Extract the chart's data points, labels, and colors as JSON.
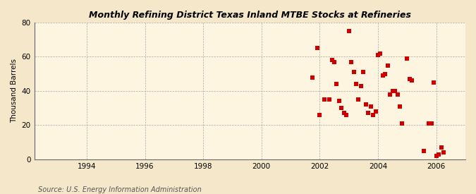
{
  "title": "Monthly Refining District Texas Inland MTBE Stocks at Refineries",
  "ylabel": "Thousand Barrels",
  "source": "Source: U.S. Energy Information Administration",
  "background_color": "#f5e8ca",
  "plot_background_color": "#fdf5e0",
  "marker_color": "#cc0000",
  "marker_size": 16,
  "xlim": [
    1992.2,
    2007.0
  ],
  "ylim": [
    0,
    80
  ],
  "xticks": [
    1994,
    1996,
    1998,
    2000,
    2002,
    2004,
    2006
  ],
  "yticks": [
    0,
    20,
    40,
    60,
    80
  ],
  "x_data": [
    2001.75,
    2001.92,
    2002.0,
    2002.17,
    2002.33,
    2002.42,
    2002.5,
    2002.58,
    2002.67,
    2002.75,
    2002.83,
    2002.92,
    2003.0,
    2003.08,
    2003.17,
    2003.25,
    2003.33,
    2003.42,
    2003.5,
    2003.58,
    2003.67,
    2003.75,
    2003.83,
    2003.92,
    2004.0,
    2004.08,
    2004.17,
    2004.25,
    2004.33,
    2004.42,
    2004.5,
    2004.58,
    2004.67,
    2004.75,
    2004.83,
    2005.0,
    2005.08,
    2005.17,
    2005.58,
    2005.75,
    2005.83,
    2005.92,
    2006.0,
    2006.08,
    2006.17,
    2006.25
  ],
  "y_data": [
    48,
    65,
    26,
    35,
    35,
    58,
    57,
    44,
    34,
    30,
    27,
    26,
    75,
    57,
    51,
    44,
    35,
    43,
    51,
    32,
    27,
    31,
    26,
    28,
    61,
    62,
    49,
    50,
    55,
    38,
    40,
    40,
    38,
    31,
    21,
    59,
    47,
    46,
    5,
    21,
    21,
    45,
    2,
    3,
    7,
    4
  ]
}
